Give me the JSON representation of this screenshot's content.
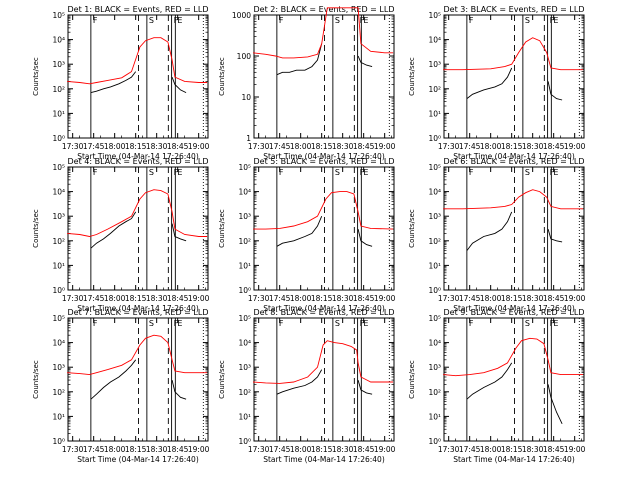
{
  "figure": {
    "xlabel": "Start Time (04-Mar-14 17:26:40)",
    "ylabel": "Counts/sec",
    "x_ticks": [
      "17:30",
      "17:45",
      "18:00",
      "18:15",
      "18:30",
      "18:45",
      "19:00"
    ],
    "y_ticks": [
      "10⁰",
      "10¹",
      "10²",
      "10³",
      "10⁴",
      "10⁵"
    ],
    "y_ticks_panel2": [
      "1",
      "10",
      "100",
      "1000"
    ],
    "markers": [
      "F",
      "S",
      "F",
      "E"
    ],
    "colors": {
      "events": "#000000",
      "lld": "#ff0000",
      "axes": "#000000"
    }
  },
  "chart_data": [
    {
      "type": "line",
      "title": "Det 1: BLACK = Events, RED = LLD",
      "yscale": "log",
      "ylim": [
        1,
        100000
      ],
      "xlim": [
        "17:26:40",
        "19:06:40"
      ],
      "series": [
        {
          "name": "Events",
          "color": "#000000",
          "x": [
            "17:43",
            "17:47",
            "17:52",
            "17:57",
            "18:03",
            "18:08",
            "18:12",
            "18:15"
          ],
          "y": [
            70,
            80,
            100,
            120,
            160,
            220,
            300,
            500
          ]
        },
        {
          "name": "Events",
          "color": "#000000",
          "x": [
            "18:41",
            "18:43",
            "18:47",
            "18:51"
          ],
          "y": [
            300,
            150,
            90,
            70
          ]
        },
        {
          "name": "LLD",
          "color": "#ff0000",
          "x": [
            "17:26",
            "17:35",
            "17:42",
            "17:47",
            "17:55",
            "18:05",
            "18:12",
            "18:18",
            "18:22",
            "18:28",
            "18:33",
            "18:38",
            "18:41",
            "18:43",
            "18:50",
            "19:00",
            "19:06"
          ],
          "y": [
            200,
            180,
            160,
            180,
            220,
            280,
            500,
            5000,
            9000,
            12000,
            12000,
            8000,
            1500,
            300,
            200,
            180,
            180
          ]
        }
      ]
    },
    {
      "type": "line",
      "title": "Det 2: BLACK = Events, RED = LLD",
      "yscale": "log",
      "ylim": [
        1,
        1000
      ],
      "xlim": [
        "17:26:40",
        "19:06:40"
      ],
      "series": [
        {
          "name": "Events",
          "color": "#000000",
          "x": [
            "17:43",
            "17:47",
            "17:52",
            "17:57",
            "18:03",
            "18:08",
            "18:12",
            "18:15"
          ],
          "y": [
            35,
            40,
            40,
            45,
            45,
            55,
            80,
            200
          ]
        },
        {
          "name": "Events",
          "color": "#000000",
          "x": [
            "18:41",
            "18:43",
            "18:47",
            "18:51"
          ],
          "y": [
            100,
            70,
            60,
            55
          ]
        },
        {
          "name": "LLD",
          "color": "#ff0000",
          "x": [
            "17:26",
            "17:35",
            "17:42",
            "17:47",
            "17:55",
            "18:05",
            "18:12",
            "18:15",
            "18:19",
            "18:41",
            "18:43",
            "18:50",
            "19:00",
            "19:06"
          ],
          "y": [
            120,
            110,
            100,
            90,
            90,
            95,
            110,
            200,
            1500,
            1500,
            200,
            130,
            120,
            120
          ]
        }
      ]
    },
    {
      "type": "line",
      "title": "Det 3: BLACK = Events, RED = LLD",
      "yscale": "log",
      "ylim": [
        1,
        100000
      ],
      "xlim": [
        "17:26:40",
        "19:06:40"
      ],
      "series": [
        {
          "name": "Events",
          "color": "#000000",
          "x": [
            "17:43",
            "17:47",
            "17:55",
            "18:03",
            "18:08",
            "18:12",
            "18:15"
          ],
          "y": [
            40,
            60,
            90,
            120,
            160,
            300,
            700
          ]
        },
        {
          "name": "Events",
          "color": "#000000",
          "x": [
            "18:41",
            "18:43",
            "18:47",
            "18:51"
          ],
          "y": [
            200,
            60,
            40,
            35
          ]
        },
        {
          "name": "LLD",
          "color": "#ff0000",
          "x": [
            "17:26",
            "17:40",
            "18:00",
            "18:10",
            "18:15",
            "18:20",
            "18:25",
            "18:30",
            "18:35",
            "18:40",
            "18:43",
            "18:50",
            "19:06"
          ],
          "y": [
            600,
            600,
            650,
            800,
            1000,
            3000,
            8000,
            12000,
            9000,
            3000,
            700,
            600,
            600
          ]
        }
      ]
    },
    {
      "type": "line",
      "title": "Det 4: BLACK = Events, RED = LLD",
      "yscale": "log",
      "ylim": [
        1,
        100000
      ],
      "xlim": [
        "17:26:40",
        "19:06:40"
      ],
      "series": [
        {
          "name": "Events",
          "color": "#000000",
          "x": [
            "17:43",
            "17:47",
            "17:52",
            "17:57",
            "18:03",
            "18:08",
            "18:12",
            "18:15"
          ],
          "y": [
            50,
            80,
            120,
            200,
            400,
            600,
            800,
            1500
          ]
        },
        {
          "name": "Events",
          "color": "#000000",
          "x": [
            "18:41",
            "18:43",
            "18:47",
            "18:51"
          ],
          "y": [
            500,
            150,
            120,
            100
          ]
        },
        {
          "name": "LLD",
          "color": "#ff0000",
          "x": [
            "17:26",
            "17:35",
            "17:42",
            "17:47",
            "17:55",
            "18:05",
            "18:12",
            "18:18",
            "18:22",
            "18:28",
            "18:33",
            "18:38",
            "18:41",
            "18:43",
            "18:50",
            "19:00",
            "19:06"
          ],
          "y": [
            200,
            180,
            150,
            180,
            300,
            600,
            1000,
            5000,
            9000,
            12000,
            11000,
            8000,
            1500,
            300,
            180,
            150,
            150
          ]
        }
      ]
    },
    {
      "type": "line",
      "title": "Det 5: BLACK = Events, RED = LLD",
      "yscale": "log",
      "ylim": [
        1,
        100000
      ],
      "xlim": [
        "17:26:40",
        "19:06:40"
      ],
      "series": [
        {
          "name": "Events",
          "color": "#000000",
          "x": [
            "17:43",
            "17:47",
            "17:55",
            "18:03",
            "18:08",
            "18:12",
            "18:15"
          ],
          "y": [
            60,
            80,
            100,
            150,
            200,
            400,
            1000
          ]
        },
        {
          "name": "Events",
          "color": "#000000",
          "x": [
            "18:41",
            "18:43",
            "18:47",
            "18:51"
          ],
          "y": [
            300,
            100,
            70,
            60
          ]
        },
        {
          "name": "LLD",
          "color": "#ff0000",
          "x": [
            "17:26",
            "17:35",
            "17:45",
            "17:55",
            "18:05",
            "18:12",
            "18:18",
            "18:22",
            "18:28",
            "18:33",
            "18:38",
            "18:41",
            "18:43",
            "18:50",
            "19:06"
          ],
          "y": [
            300,
            300,
            320,
            400,
            600,
            1000,
            5000,
            9000,
            10000,
            10000,
            8000,
            1500,
            400,
            320,
            300
          ]
        }
      ]
    },
    {
      "type": "line",
      "title": "Det 6: BLACK = Events, RED = LLD",
      "yscale": "log",
      "ylim": [
        1,
        100000
      ],
      "xlim": [
        "17:26:40",
        "19:06:40"
      ],
      "series": [
        {
          "name": "Events",
          "color": "#000000",
          "x": [
            "17:43",
            "17:47",
            "17:55",
            "18:03",
            "18:08",
            "18:12",
            "18:15"
          ],
          "y": [
            40,
            80,
            150,
            200,
            300,
            600,
            1500
          ]
        },
        {
          "name": "Events",
          "color": "#000000",
          "x": [
            "18:41",
            "18:43",
            "18:47",
            "18:51"
          ],
          "y": [
            300,
            120,
            100,
            90
          ]
        },
        {
          "name": "LLD",
          "color": "#ff0000",
          "x": [
            "17:26",
            "17:40",
            "18:00",
            "18:10",
            "18:15",
            "18:20",
            "18:25",
            "18:30",
            "18:35",
            "18:40",
            "18:43",
            "18:50",
            "19:06"
          ],
          "y": [
            2000,
            2000,
            2200,
            2500,
            3000,
            6000,
            9000,
            12000,
            10000,
            6000,
            2500,
            2000,
            2000
          ]
        }
      ]
    },
    {
      "type": "line",
      "title": "Det 7: BLACK = Events, RED = LLD",
      "yscale": "log",
      "ylim": [
        1,
        100000
      ],
      "xlim": [
        "17:26:40",
        "19:06:40"
      ],
      "series": [
        {
          "name": "Events",
          "color": "#000000",
          "x": [
            "17:43",
            "17:47",
            "17:52",
            "17:57",
            "18:03",
            "18:08",
            "18:12",
            "18:15"
          ],
          "y": [
            50,
            80,
            150,
            250,
            400,
            700,
            1200,
            2000
          ]
        },
        {
          "name": "Events",
          "color": "#000000",
          "x": [
            "18:41",
            "18:43",
            "18:47",
            "18:51"
          ],
          "y": [
            300,
            100,
            60,
            50
          ]
        },
        {
          "name": "LLD",
          "color": "#ff0000",
          "x": [
            "17:26",
            "17:35",
            "17:42",
            "17:47",
            "17:55",
            "18:05",
            "18:12",
            "18:18",
            "18:22",
            "18:28",
            "18:33",
            "18:38",
            "18:41",
            "18:43",
            "18:50",
            "19:00",
            "19:06"
          ],
          "y": [
            600,
            550,
            500,
            600,
            800,
            1200,
            2000,
            8000,
            15000,
            20000,
            18000,
            10000,
            2000,
            700,
            600,
            600,
            600
          ]
        }
      ]
    },
    {
      "type": "line",
      "title": "Det 8: BLACK = Events, RED = LLD",
      "yscale": "log",
      "ylim": [
        1,
        100000
      ],
      "xlim": [
        "17:26:40",
        "19:06:40"
      ],
      "series": [
        {
          "name": "Events",
          "color": "#000000",
          "x": [
            "17:43",
            "17:47",
            "17:55",
            "18:03",
            "18:08",
            "18:12",
            "18:15"
          ],
          "y": [
            80,
            100,
            140,
            180,
            250,
            400,
            800
          ]
        },
        {
          "name": "Events",
          "color": "#000000",
          "x": [
            "18:41",
            "18:43",
            "18:47",
            "18:51"
          ],
          "y": [
            300,
            120,
            90,
            80
          ]
        },
        {
          "name": "LLD",
          "color": "#ff0000",
          "x": [
            "17:26",
            "17:35",
            "17:45",
            "17:55",
            "18:05",
            "18:12",
            "18:16",
            "18:19",
            "18:24",
            "18:30",
            "18:36",
            "18:40",
            "18:41",
            "18:43",
            "18:50",
            "19:06"
          ],
          "y": [
            250,
            230,
            220,
            250,
            400,
            1000,
            8000,
            12000,
            10000,
            9000,
            7000,
            5000,
            1500,
            400,
            250,
            250
          ]
        }
      ]
    },
    {
      "type": "line",
      "title": "Det 9: BLACK = Events, RED = LLD",
      "yscale": "log",
      "ylim": [
        1,
        100000
      ],
      "xlim": [
        "17:26:40",
        "19:06:40"
      ],
      "series": [
        {
          "name": "Events",
          "color": "#000000",
          "x": [
            "17:43",
            "17:47",
            "17:55",
            "18:03",
            "18:08",
            "18:12",
            "18:15"
          ],
          "y": [
            50,
            80,
            150,
            250,
            400,
            800,
            1500
          ]
        },
        {
          "name": "Events",
          "color": "#000000",
          "x": [
            "18:41",
            "18:43",
            "18:47",
            "18:51"
          ],
          "y": [
            200,
            60,
            15,
            5
          ]
        },
        {
          "name": "LLD",
          "color": "#ff0000",
          "x": [
            "17:26",
            "17:35",
            "17:45",
            "17:55",
            "18:05",
            "18:12",
            "18:18",
            "18:22",
            "18:28",
            "18:33",
            "18:38",
            "18:41",
            "18:43",
            "18:50",
            "19:06"
          ],
          "y": [
            500,
            450,
            500,
            600,
            900,
            1500,
            6000,
            12000,
            15000,
            14000,
            9000,
            2000,
            600,
            500,
            500
          ]
        }
      ]
    }
  ]
}
